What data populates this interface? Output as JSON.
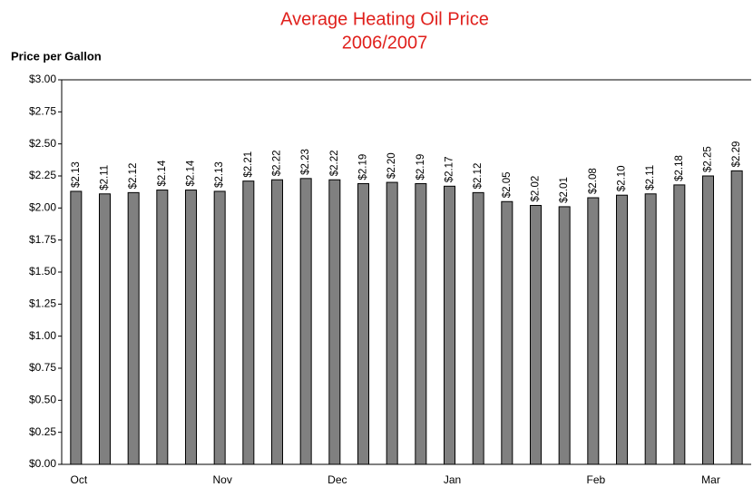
{
  "chart_data": {
    "type": "bar",
    "title": "Average Heating Oil Price",
    "subtitle": "2006/2007",
    "y_label": "Price per Gallon",
    "categories": [
      "Oct",
      null,
      null,
      null,
      null,
      "Nov",
      null,
      null,
      null,
      "Dec",
      null,
      null,
      null,
      "Jan",
      null,
      null,
      null,
      null,
      "Feb",
      null,
      null,
      null,
      "Mar",
      null
    ],
    "values": [
      2.13,
      2.11,
      2.12,
      2.14,
      2.14,
      2.13,
      2.21,
      2.22,
      2.23,
      2.22,
      2.19,
      2.2,
      2.19,
      2.17,
      2.12,
      2.05,
      2.02,
      2.01,
      2.08,
      2.1,
      2.11,
      2.18,
      2.25,
      2.29
    ],
    "value_labels": [
      "$2.13",
      "$2.11",
      "$2.12",
      "$2.14",
      "$2.14",
      "$2.13",
      "$2.21",
      "$2.22",
      "$2.23",
      "$2.22",
      "$2.19",
      "$2.20",
      "$2.19",
      "$2.17",
      "$2.12",
      "$2.05",
      "$2.02",
      "$2.01",
      "$2.08",
      "$2.10",
      "$2.11",
      "$2.18",
      "$2.25",
      "$2.29"
    ],
    "color": "#808080",
    "ylim": [
      0,
      3
    ],
    "yticks": [
      {
        "value": 0,
        "label": "$0.00"
      },
      {
        "value": 0.25,
        "label": "$0.25"
      },
      {
        "value": 0.5,
        "label": "$0.50"
      },
      {
        "value": 0.75,
        "label": "$0.75"
      },
      {
        "value": 1,
        "label": "$1.00"
      },
      {
        "value": 1.25,
        "label": "$1.25"
      },
      {
        "value": 1.5,
        "label": "$1.50"
      },
      {
        "value": 1.75,
        "label": "$1.75"
      },
      {
        "value": 2,
        "label": "$2.00"
      },
      {
        "value": 2.25,
        "label": "$2.25"
      },
      {
        "value": 2.5,
        "label": "$2.50"
      },
      {
        "value": 2.75,
        "label": "$2.75"
      },
      {
        "value": 3,
        "label": "$3.00"
      }
    ],
    "grid": false
  }
}
